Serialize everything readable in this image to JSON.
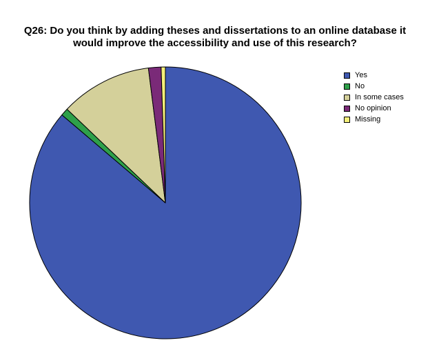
{
  "chart_data": {
    "type": "pie",
    "title_lines": [
      "Q26: Do you think by adding theses and dissertations to an online database it",
      "would improve the accessibility and use of this research?"
    ],
    "slices": [
      {
        "label": "Yes",
        "value": 86.2,
        "color": "#3f58b0"
      },
      {
        "label": "No",
        "value": 0.9,
        "color": "#2ea04a"
      },
      {
        "label": "In some cases",
        "value": 10.9,
        "color": "#d4d09a"
      },
      {
        "label": "No opinion",
        "value": 1.5,
        "color": "#7a2a78"
      },
      {
        "label": "Missing",
        "value": 0.5,
        "color": "#f5f07a"
      }
    ],
    "start_angle": "12 o'clock",
    "direction": "clockwise",
    "legend_position": "top-right"
  }
}
